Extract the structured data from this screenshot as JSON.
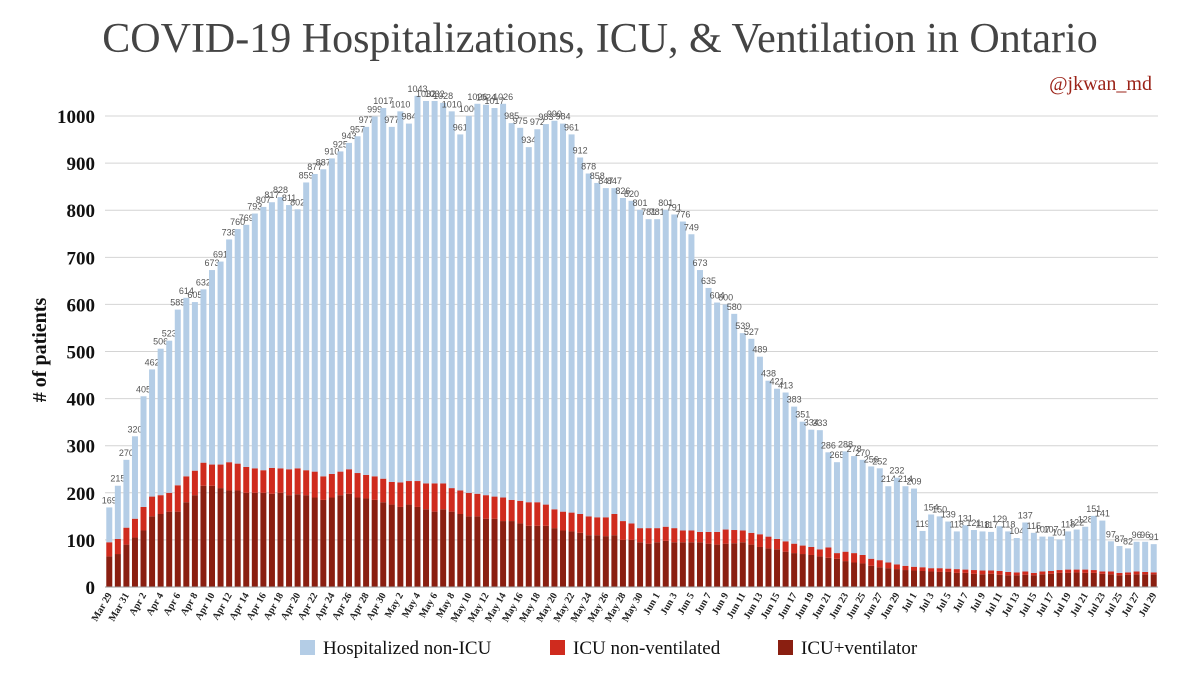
{
  "chart_data": {
    "type": "stacked-bar",
    "title": "COVID-19 Hospitalizations, ICU, & Ventilation in Ontario",
    "subtitle": "@jkwan_md",
    "y_label": "# of patients",
    "categories": [
      "Mar 29",
      null,
      "Mar 31",
      null,
      "Apr 2",
      null,
      "Apr 4",
      null,
      "Apr 6",
      null,
      "Apr 8",
      null,
      "Apr 10",
      null,
      "Apr 12",
      null,
      "Apr 14",
      null,
      "Apr 16",
      null,
      "Apr 18",
      null,
      "Apr 20",
      null,
      "Apr 22",
      null,
      "Apr 24",
      null,
      "Apr 26",
      null,
      "Apr 28",
      null,
      "Apr 30",
      null,
      "May 2",
      null,
      "May 4",
      null,
      "May 6",
      null,
      "May 8",
      null,
      "May 10",
      null,
      "May 12",
      null,
      "May 14",
      null,
      "May 16",
      null,
      "May 18",
      null,
      "May 20",
      null,
      "May 22",
      null,
      "May 24",
      null,
      "May 26",
      null,
      "May 28",
      null,
      "May 30",
      null,
      "Jun 1",
      null,
      "Jun 3",
      null,
      "Jun 5",
      null,
      "Jun 7",
      null,
      "Jun 9",
      null,
      "Jun 11",
      null,
      "Jun 13",
      null,
      "Jun 15",
      null,
      "Jun 17",
      null,
      "Jun 19",
      null,
      "Jun 21",
      null,
      "Jun 23",
      null,
      "Jun 25",
      null,
      "Jun 27",
      null,
      "Jun 29",
      null,
      "Jul 1",
      null,
      "Jul 3",
      null,
      "Jul 5",
      null,
      "Jul 7",
      null,
      "Jul 9",
      null,
      "Jul 11",
      null,
      "Jul 13",
      null,
      "Jul 15",
      null,
      "Jul 17",
      null,
      "Jul 19",
      null,
      "Jul 21",
      null,
      "Jul 23",
      null,
      "Jul 25",
      null,
      "Jul 27",
      null,
      "Jul 29"
    ],
    "series": [
      {
        "name": "Hospitalized non-ICU",
        "color": "#b4cde6",
        "values": [
          74,
          113,
          144,
          175,
          235,
          270,
          311,
          323,
          373,
          379,
          358,
          368,
          413,
          431,
          473,
          498,
          514,
          541,
          559,
          564,
          576,
          561,
          550,
          611,
          632,
          652,
          670,
          680,
          693,
          715,
          739,
          764,
          787,
          754,
          788,
          759,
          818,
          812,
          812,
          808,
          800,
          756,
          800,
          828,
          829,
          825,
          836,
          800,
          792,
          754,
          792,
          808,
          825,
          824,
          803,
          757,
          728,
          710,
          699,
          692,
          686,
          685,
          676,
          656,
          656,
          673,
          666,
          656,
          629,
          556,
          518,
          487,
          478,
          459,
          419,
          412,
          377,
          331,
          319,
          316,
          291,
          263,
          249,
          253,
          202,
          193,
          213,
          206,
          202,
          196,
          195,
          162,
          184,
          169,
          166,
          77,
          114,
          110,
          100,
          80,
          94,
          85,
          83,
          82,
          95,
          86,
          73,
          104,
          85,
          74,
          73,
          65,
          81,
          85,
          91,
          115,
          108,
          64,
          57,
          51,
          63,
          64,
          60
        ]
      },
      {
        "name": "ICU non-ventilated",
        "color": "#cf2b1e",
        "values": [
          30,
          32,
          36,
          40,
          50,
          42,
          40,
          40,
          56,
          55,
          52,
          49,
          45,
          50,
          60,
          57,
          55,
          52,
          48,
          55,
          52,
          55,
          55,
          53,
          55,
          50,
          50,
          50,
          52,
          52,
          50,
          50,
          50,
          48,
          52,
          50,
          55,
          55,
          60,
          55,
          50,
          50,
          50,
          48,
          50,
          47,
          50,
          45,
          48,
          50,
          50,
          45,
          40,
          40,
          40,
          40,
          40,
          38,
          40,
          45,
          40,
          35,
          30,
          33,
          30,
          30,
          30,
          25,
          25,
          22,
          25,
          27,
          30,
          28,
          25,
          25,
          27,
          25,
          22,
          22,
          20,
          18,
          17,
          15,
          22,
          12,
          20,
          20,
          18,
          15,
          15,
          12,
          10,
          9,
          8,
          8,
          7,
          8,
          7,
          8,
          7,
          8,
          8,
          7,
          8,
          7,
          6,
          7,
          5,
          6,
          6,
          6,
          7,
          6,
          7,
          6,
          5,
          6,
          5,
          5,
          6,
          5,
          4
        ]
      },
      {
        "name": "ICU+ventilator",
        "color": "#8a1f11",
        "values": [
          65,
          70,
          90,
          105,
          120,
          150,
          155,
          160,
          160,
          180,
          195,
          215,
          215,
          210,
          205,
          205,
          200,
          200,
          200,
          198,
          200,
          195,
          197,
          195,
          190,
          185,
          190,
          195,
          198,
          190,
          188,
          185,
          180,
          175,
          170,
          175,
          170,
          165,
          160,
          165,
          160,
          155,
          150,
          150,
          145,
          145,
          140,
          140,
          135,
          130,
          130,
          130,
          125,
          120,
          118,
          115,
          110,
          110,
          108,
          110,
          100,
          100,
          95,
          92,
          95,
          98,
          95,
          95,
          95,
          95,
          92,
          90,
          92,
          93,
          95,
          90,
          85,
          82,
          80,
          75,
          72,
          70,
          68,
          65,
          62,
          60,
          55,
          52,
          50,
          45,
          42,
          40,
          38,
          36,
          35,
          34,
          33,
          32,
          32,
          30,
          30,
          28,
          27,
          28,
          26,
          25,
          25,
          26,
          25,
          27,
          28,
          30,
          30,
          31,
          30,
          30,
          28,
          27,
          25,
          26,
          27,
          27,
          27
        ]
      }
    ],
    "total_labels": [
      169,
      215,
      270,
      320,
      405,
      462,
      506,
      523,
      589,
      614,
      605,
      632,
      673,
      691,
      738,
      760,
      769,
      793,
      807,
      817,
      828,
      811,
      802,
      859,
      877,
      887,
      910,
      925,
      943,
      957,
      977,
      999,
      1017,
      977,
      1010,
      984,
      1043,
      1032,
      1032,
      1028,
      1010,
      961,
      1000,
      1026,
      1024,
      1017,
      1026,
      985,
      975,
      934,
      972,
      983,
      990,
      984,
      961,
      912,
      878,
      858,
      847,
      847,
      826,
      820,
      801,
      781,
      781,
      801,
      791,
      776,
      749,
      673,
      635,
      604,
      600,
      580,
      539,
      527,
      489,
      438,
      421,
      413,
      383,
      351,
      334,
      333,
      286,
      265,
      288,
      278,
      270,
      256,
      252,
      214,
      232,
      214,
      209,
      119,
      154,
      150,
      139,
      118,
      131,
      121,
      118,
      117,
      129,
      118,
      104,
      137,
      115,
      107,
      107,
      101,
      118,
      122,
      128,
      151,
      141,
      97,
      87,
      82,
      96,
      96,
      91
    ],
    "ylim": [
      0,
      1050
    ],
    "yticks": [
      0,
      100,
      200,
      300,
      400,
      500,
      600,
      700,
      800,
      900,
      1000
    ],
    "grid": true,
    "legend": "bottom"
  }
}
